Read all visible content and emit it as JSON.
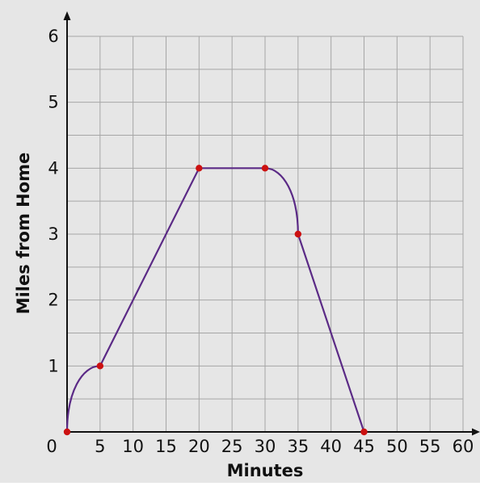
{
  "chart_data": {
    "type": "line",
    "title": "",
    "xlabel": "Minutes",
    "ylabel": "Miles from Home",
    "xlim": [
      0,
      60
    ],
    "ylim": [
      0,
      6
    ],
    "x_ticks": [
      "0",
      "5",
      "10",
      "15",
      "20",
      "25",
      "30",
      "35",
      "40",
      "45",
      "50",
      "55",
      "60"
    ],
    "y_ticks": [
      "1",
      "2",
      "3",
      "4",
      "5",
      "6"
    ],
    "grid": true,
    "grid_step_x": 5,
    "grid_step_y": 0.5,
    "series": [
      {
        "points": [
          {
            "x": 0,
            "y": 0
          },
          {
            "x": 5,
            "y": 1
          },
          {
            "x": 20,
            "y": 4
          },
          {
            "x": 30,
            "y": 4
          },
          {
            "x": 35,
            "y": 3
          },
          {
            "x": 45,
            "y": 0
          }
        ],
        "segments": [
          "curve-concave-down",
          "straight",
          "straight",
          "curve-concave-down",
          "straight"
        ]
      }
    ],
    "colors": {
      "background": "#e6e6e6",
      "grid": "#a6a6a6",
      "axis": "#111111",
      "line": "#5b2a86",
      "marker": "#cc1111"
    }
  }
}
